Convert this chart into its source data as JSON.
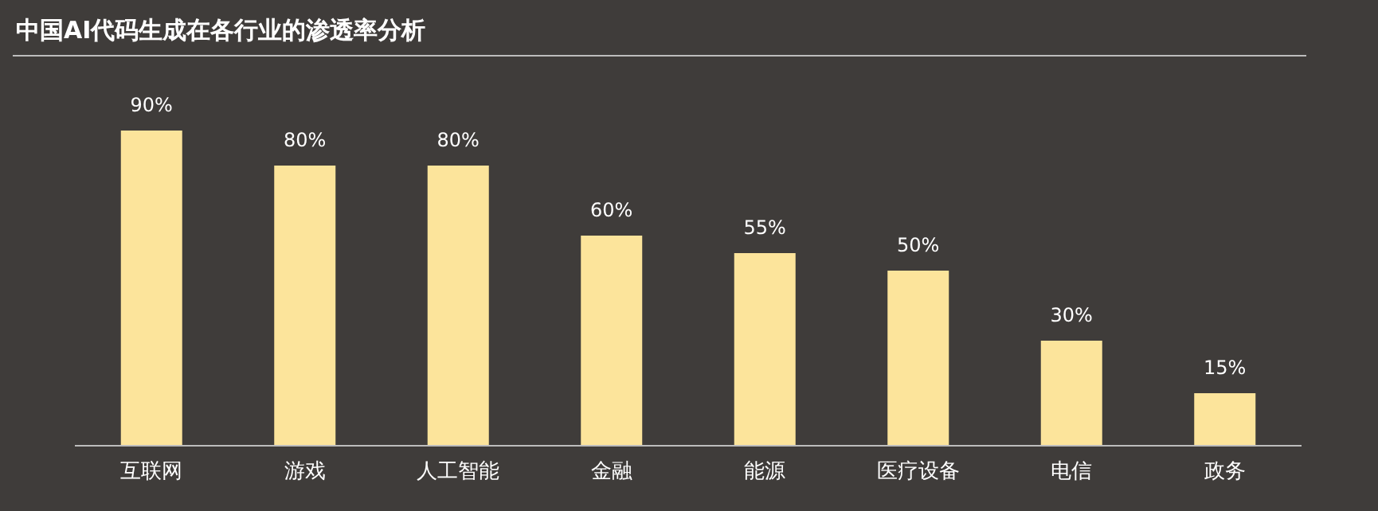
{
  "chart_data": {
    "type": "bar",
    "title": "中国AI代码生成在各行业的渗透率分析",
    "categories": [
      "互联网",
      "游戏",
      "人工智能",
      "金融",
      "能源",
      "医疗设备",
      "电信",
      "政务"
    ],
    "values": [
      90,
      80,
      80,
      60,
      55,
      50,
      30,
      15
    ],
    "value_labels": [
      "90%",
      "80%",
      "80%",
      "60%",
      "55%",
      "50%",
      "30%",
      "15%"
    ],
    "color": "#fce49b"
  }
}
